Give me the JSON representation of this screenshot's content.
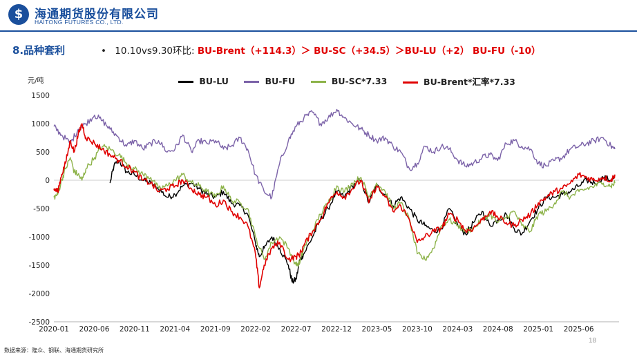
{
  "header": {
    "logo_glyph": "$",
    "company_cn": "海通期货股份有限公司",
    "company_en": "HAITONG FUTURES CO., LTD.",
    "brand_color": "#1a4f9c"
  },
  "section": {
    "title": "8.品种套利"
  },
  "summary": {
    "bullet": "•",
    "lead": "10.10vs9.30环比:",
    "highlight": "BU-Brent（+114.3）＞ BU-SC（+34.5）＞BU-LU（+2） BU-FU（-10）"
  },
  "footer": {
    "source": "数据来源：隆众、钢联、海通期货研究所",
    "page_number": "18"
  },
  "chart_data": {
    "type": "line",
    "title": "",
    "xlabel": "",
    "ylabel": "元/吨",
    "ylim": [
      -2500,
      1500
    ],
    "xlim": [
      2020.0,
      2025.833
    ],
    "yticks": [
      -2500,
      -2000,
      -1500,
      -1000,
      -500,
      0,
      500,
      1000,
      1500
    ],
    "xticks": [
      {
        "label": "2020-01",
        "t": 2020.0
      },
      {
        "label": "2020-06",
        "t": 2020.417
      },
      {
        "label": "2020-11",
        "t": 2020.833
      },
      {
        "label": "2021-04",
        "t": 2021.25
      },
      {
        "label": "2021-09",
        "t": 2021.667
      },
      {
        "label": "2022-02",
        "t": 2022.083
      },
      {
        "label": "2022-07",
        "t": 2022.5
      },
      {
        "label": "2022-12",
        "t": 2022.917
      },
      {
        "label": "2023-05",
        "t": 2023.333
      },
      {
        "label": "2023-10",
        "t": 2023.75
      },
      {
        "label": "2024-03",
        "t": 2024.167
      },
      {
        "label": "2024-08",
        "t": 2024.583
      },
      {
        "label": "2025-01",
        "t": 2025.0
      },
      {
        "label": "2025-06",
        "t": 2025.417
      }
    ],
    "legend_position": "top",
    "series": [
      {
        "name": "BU-LU",
        "color": "#000000",
        "x": [
          2020.58,
          2020.62,
          2020.67,
          2020.75,
          2020.83,
          2020.92,
          2021.0,
          2021.08,
          2021.17,
          2021.25,
          2021.33,
          2021.42,
          2021.5,
          2021.58,
          2021.67,
          2021.75,
          2021.83,
          2021.92,
          2022.0,
          2022.08,
          2022.12,
          2022.17,
          2022.25,
          2022.33,
          2022.42,
          2022.46,
          2022.5,
          2022.54,
          2022.58,
          2022.67,
          2022.75,
          2022.83,
          2022.92,
          2023.0,
          2023.08,
          2023.17,
          2023.25,
          2023.33,
          2023.42,
          2023.5,
          2023.58,
          2023.67,
          2023.75,
          2023.83,
          2023.92,
          2024.0,
          2024.08,
          2024.17,
          2024.25,
          2024.33,
          2024.42,
          2024.5,
          2024.58,
          2024.67,
          2024.75,
          2024.83,
          2024.92,
          2025.0,
          2025.08,
          2025.17,
          2025.25,
          2025.33,
          2025.42,
          2025.5,
          2025.58,
          2025.67,
          2025.75,
          2025.79
        ],
        "values": [
          -50,
          250,
          350,
          150,
          100,
          0,
          -50,
          -150,
          -300,
          -250,
          -100,
          -50,
          -150,
          -250,
          -300,
          -200,
          -400,
          -450,
          -600,
          -1100,
          -1350,
          -1200,
          -1000,
          -1200,
          -1500,
          -1800,
          -1750,
          -1400,
          -1300,
          -1000,
          -700,
          -500,
          -200,
          -300,
          -100,
          0,
          -400,
          -100,
          -250,
          -450,
          -300,
          -500,
          -700,
          -800,
          -900,
          -850,
          -500,
          -800,
          -950,
          -750,
          -550,
          -800,
          -700,
          -600,
          -850,
          -950,
          -700,
          -500,
          -300,
          -300,
          -250,
          -200,
          -100,
          0,
          -50,
          50,
          0,
          50
        ]
      },
      {
        "name": "BU-FU",
        "color": "#7b62a8",
        "x": [
          2020.0,
          2020.08,
          2020.17,
          2020.25,
          2020.33,
          2020.42,
          2020.5,
          2020.58,
          2020.67,
          2020.75,
          2020.83,
          2020.92,
          2021.0,
          2021.08,
          2021.17,
          2021.25,
          2021.33,
          2021.42,
          2021.5,
          2021.58,
          2021.67,
          2021.75,
          2021.83,
          2021.92,
          2022.0,
          2022.08,
          2022.17,
          2022.25,
          2022.33,
          2022.42,
          2022.5,
          2022.58,
          2022.67,
          2022.75,
          2022.83,
          2022.92,
          2023.0,
          2023.08,
          2023.17,
          2023.25,
          2023.33,
          2023.42,
          2023.5,
          2023.58,
          2023.67,
          2023.75,
          2023.83,
          2023.92,
          2024.0,
          2024.08,
          2024.17,
          2024.25,
          2024.33,
          2024.42,
          2024.5,
          2024.58,
          2024.67,
          2024.75,
          2024.83,
          2024.92,
          2025.0,
          2025.08,
          2025.17,
          2025.25,
          2025.33,
          2025.42,
          2025.5,
          2025.58,
          2025.67,
          2025.75,
          2025.79
        ],
        "values": [
          950,
          800,
          650,
          900,
          1000,
          1150,
          1050,
          900,
          750,
          600,
          700,
          550,
          650,
          700,
          500,
          550,
          800,
          500,
          700,
          650,
          700,
          550,
          600,
          750,
          550,
          100,
          -200,
          -300,
          300,
          700,
          950,
          1100,
          1200,
          1000,
          1100,
          1250,
          1100,
          1000,
          900,
          800,
          700,
          750,
          600,
          500,
          200,
          300,
          600,
          500,
          600,
          550,
          350,
          250,
          300,
          400,
          450,
          350,
          650,
          700,
          600,
          550,
          300,
          250,
          350,
          400,
          550,
          600,
          650,
          700,
          750,
          600,
          550
        ]
      },
      {
        "name": "BU-SC*7.33",
        "color": "#8db34a",
        "x": [
          2020.0,
          2020.04,
          2020.08,
          2020.12,
          2020.17,
          2020.21,
          2020.25,
          2020.29,
          2020.33,
          2020.42,
          2020.5,
          2020.58,
          2020.67,
          2020.75,
          2020.83,
          2020.92,
          2021.0,
          2021.08,
          2021.17,
          2021.25,
          2021.33,
          2021.42,
          2021.5,
          2021.58,
          2021.67,
          2021.75,
          2021.83,
          2021.92,
          2022.0,
          2022.08,
          2022.17,
          2022.25,
          2022.33,
          2022.42,
          2022.5,
          2022.54,
          2022.58,
          2022.67,
          2022.75,
          2022.83,
          2022.92,
          2023.0,
          2023.08,
          2023.17,
          2023.25,
          2023.33,
          2023.42,
          2023.5,
          2023.58,
          2023.67,
          2023.75,
          2023.83,
          2023.92,
          2024.0,
          2024.08,
          2024.17,
          2024.25,
          2024.33,
          2024.42,
          2024.5,
          2024.58,
          2024.67,
          2024.75,
          2024.83,
          2024.92,
          2025.0,
          2025.08,
          2025.17,
          2025.25,
          2025.33,
          2025.42,
          2025.5,
          2025.58,
          2025.67,
          2025.75,
          2025.79
        ],
        "values": [
          -300,
          -250,
          0,
          200,
          400,
          150,
          100,
          0,
          200,
          400,
          600,
          550,
          450,
          300,
          200,
          100,
          50,
          -150,
          -100,
          0,
          100,
          -50,
          -100,
          -200,
          -300,
          -100,
          -350,
          -400,
          -500,
          -1000,
          -1400,
          -1100,
          -1000,
          -1200,
          -1500,
          -1450,
          -1200,
          -900,
          -600,
          -400,
          -100,
          -200,
          -50,
          50,
          -300,
          -50,
          -200,
          -500,
          -400,
          -700,
          -1300,
          -1400,
          -1200,
          -800,
          -700,
          -800,
          -900,
          -850,
          -700,
          -600,
          -750,
          -650,
          -550,
          -800,
          -900,
          -600,
          -550,
          -400,
          -200,
          -300,
          -200,
          -150,
          -100,
          -50,
          -100,
          -50
        ]
      },
      {
        "name": "BU-Brent*汇率*7.33",
        "color": "#e00000",
        "x": [
          2020.0,
          2020.04,
          2020.08,
          2020.12,
          2020.17,
          2020.21,
          2020.25,
          2020.29,
          2020.33,
          2020.42,
          2020.5,
          2020.58,
          2020.67,
          2020.75,
          2020.83,
          2020.92,
          2021.0,
          2021.08,
          2021.17,
          2021.25,
          2021.33,
          2021.42,
          2021.5,
          2021.58,
          2021.67,
          2021.75,
          2021.83,
          2021.92,
          2022.0,
          2022.08,
          2022.12,
          2022.17,
          2022.25,
          2022.33,
          2022.42,
          2022.5,
          2022.54,
          2022.58,
          2022.67,
          2022.75,
          2022.83,
          2022.92,
          2023.0,
          2023.08,
          2023.17,
          2023.25,
          2023.33,
          2023.42,
          2023.5,
          2023.58,
          2023.67,
          2023.75,
          2023.83,
          2023.92,
          2024.0,
          2024.08,
          2024.17,
          2024.25,
          2024.33,
          2024.42,
          2024.5,
          2024.58,
          2024.67,
          2024.75,
          2024.83,
          2024.92,
          2025.0,
          2025.08,
          2025.17,
          2025.25,
          2025.33,
          2025.42,
          2025.5,
          2025.58,
          2025.67,
          2025.75,
          2025.79
        ],
        "values": [
          -150,
          -200,
          100,
          300,
          700,
          500,
          800,
          1000,
          750,
          650,
          550,
          450,
          350,
          250,
          150,
          0,
          -50,
          -200,
          -150,
          -100,
          0,
          -150,
          -250,
          -300,
          -450,
          -350,
          -550,
          -650,
          -800,
          -1300,
          -1900,
          -1500,
          -1200,
          -1100,
          -1400,
          -1350,
          -1300,
          -1150,
          -900,
          -700,
          -400,
          -200,
          -300,
          -150,
          0,
          -400,
          -100,
          -300,
          -550,
          -450,
          -700,
          -1100,
          -1000,
          -900,
          -850,
          -600,
          -700,
          -900,
          -850,
          -700,
          -550,
          -650,
          -750,
          -800,
          -700,
          -600,
          -400,
          -300,
          -200,
          -150,
          -50,
          100,
          50,
          0,
          50,
          0,
          100
        ]
      }
    ]
  }
}
